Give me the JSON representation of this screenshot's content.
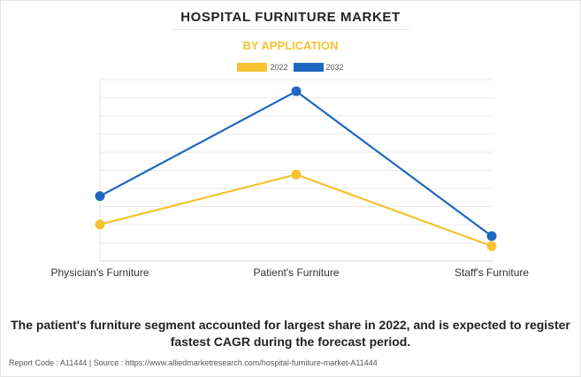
{
  "header": {
    "title": "HOSPITAL FURNITURE MARKET",
    "subtitle": "BY APPLICATION"
  },
  "chart_data": {
    "type": "line",
    "title": "HOSPITAL FURNITURE MARKET",
    "subtitle": "BY APPLICATION",
    "categories": [
      "Physician's Furniture",
      "Patient's Furniture",
      "Staff's Furniture"
    ],
    "series": [
      {
        "name": "2022",
        "color": "#f5c232",
        "values": [
          2.2,
          5.2,
          0.9
        ]
      },
      {
        "name": "2032",
        "color": "#1f68c1",
        "values": [
          3.9,
          10.2,
          1.5
        ]
      }
    ],
    "ylim": [
      0,
      10.9
    ],
    "y_ticks_labeled": false,
    "grid": true,
    "legend": "top-center",
    "xlabel": "",
    "ylabel": ""
  },
  "footer": {
    "summary": "The patient's furniture segment accounted for largest share in 2022, and is expected to register fastest CAGR during the forecast period.",
    "source": "Report Code : A11444  |  Source : https://www.alliedmarketresearch.com/hospital-furniture-market-A11444"
  }
}
